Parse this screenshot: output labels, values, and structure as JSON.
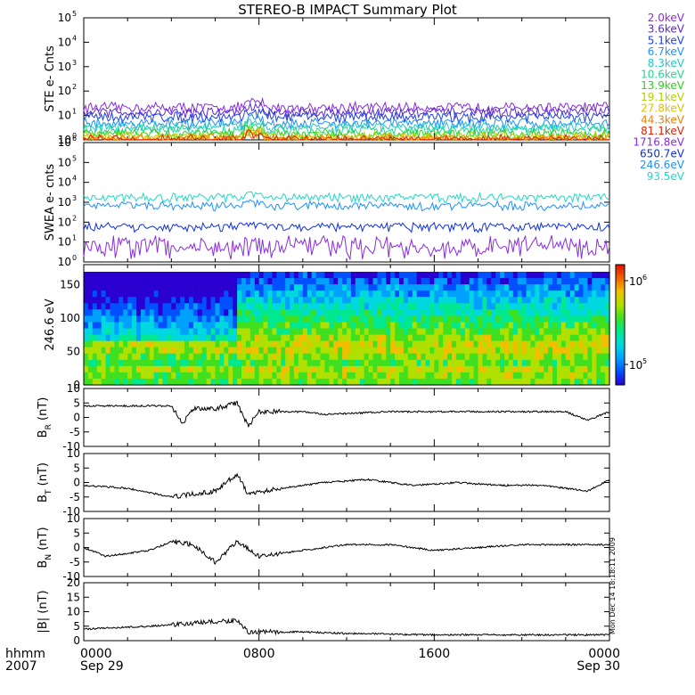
{
  "title": "STEREO-B IMPACT Summary Plot",
  "time_axis": {
    "row1_labels": [
      "0000",
      "0800",
      "1600",
      "0000"
    ],
    "row2_labels": [
      "Sep 29",
      "",
      "",
      "Sep 30"
    ],
    "left_label_1": "hhmm",
    "left_label_2": "2007",
    "range_hours": [
      0,
      24
    ]
  },
  "side_stamp": "Mon Dec 14 18:18:11 2009",
  "chart_data": [
    {
      "id": "ste",
      "type": "line",
      "ylabel": "STE e- Cnts",
      "yscale": "log",
      "ylim": [
        1,
        100000
      ],
      "y_ticks": [
        {
          "base": "10",
          "exp": "0",
          "v": 1
        },
        {
          "base": "10",
          "exp": "1",
          "v": 10
        },
        {
          "base": "10",
          "exp": "2",
          "v": 100
        },
        {
          "base": "10",
          "exp": "3",
          "v": 1000
        },
        {
          "base": "10",
          "exp": "4",
          "v": 10000
        },
        {
          "base": "10",
          "exp": "5",
          "v": 100000
        }
      ],
      "series": [
        {
          "name": "2.0keV",
          "color": "#8a2be2",
          "level": 22
        },
        {
          "name": "3.6keV",
          "color": "#5a2ad0",
          "level": 14
        },
        {
          "name": "5.1keV",
          "color": "#2040e0",
          "level": 9
        },
        {
          "name": "6.7keV",
          "color": "#1e90ff",
          "level": 5
        },
        {
          "name": "8.3keV",
          "color": "#20c8c8",
          "level": 3.5
        },
        {
          "name": "10.6keV",
          "color": "#20d890",
          "level": 2.5
        },
        {
          "name": "13.9keV",
          "color": "#30d020",
          "level": 1.8
        },
        {
          "name": "19.1keV",
          "color": "#b0d000",
          "level": 1.4
        },
        {
          "name": "27.8keV",
          "color": "#e0c000",
          "level": 1.2
        },
        {
          "name": "44.3keV",
          "color": "#f08000",
          "level": 1.1
        },
        {
          "name": "81.1keV",
          "color": "#e02000",
          "level": 1.05
        }
      ]
    },
    {
      "id": "swea",
      "type": "line",
      "ylabel": "SWEA e- cnts",
      "yscale": "log",
      "ylim": [
        1,
        1000000
      ],
      "y_ticks": [
        {
          "base": "10",
          "exp": "0",
          "v": 1
        },
        {
          "base": "10",
          "exp": "1",
          "v": 10
        },
        {
          "base": "10",
          "exp": "2",
          "v": 100
        },
        {
          "base": "10",
          "exp": "3",
          "v": 1000
        },
        {
          "base": "10",
          "exp": "4",
          "v": 10000
        },
        {
          "base": "10",
          "exp": "5",
          "v": 100000
        },
        {
          "base": "10",
          "exp": "6",
          "v": 1000000
        }
      ],
      "series": [
        {
          "name": "1716.8eV",
          "color": "#8a2be2",
          "level": 6
        },
        {
          "name": "650.7eV",
          "color": "#1030e0",
          "level": 60
        },
        {
          "name": "246.6eV",
          "color": "#1e90ff",
          "level": 700
        },
        {
          "name": "93.5eV",
          "color": "#20d8c8",
          "level": 1800
        }
      ]
    },
    {
      "id": "pad",
      "type": "heatmap",
      "ylabel": "246.6 eV",
      "ylim": [
        0,
        180
      ],
      "y_ticks": [
        "0",
        "50",
        "100",
        "150"
      ],
      "y_tick_values": [
        0,
        50,
        100,
        150
      ],
      "colorbar": {
        "scale": "log",
        "ticks": [
          {
            "base": "10",
            "exp": "5"
          },
          {
            "base": "10",
            "exp": "6"
          }
        ]
      }
    },
    {
      "id": "br",
      "type": "line",
      "ylabel_main": "B",
      "ylabel_sub": "R",
      "ylabel_unit": " (nT)",
      "ylim": [
        -10,
        10
      ],
      "y_ticks": [
        "10",
        "5",
        "0",
        "-5",
        "-10"
      ],
      "y_tick_values": [
        10,
        5,
        0,
        -5,
        -10
      ],
      "profile": [
        [
          0,
          4
        ],
        [
          4,
          4
        ],
        [
          4.5,
          -2
        ],
        [
          5,
          3
        ],
        [
          6,
          3
        ],
        [
          7,
          5
        ],
        [
          7.5,
          -3
        ],
        [
          8,
          2
        ],
        [
          10,
          2
        ],
        [
          11,
          1
        ],
        [
          14,
          2
        ],
        [
          20,
          2
        ],
        [
          22,
          2
        ],
        [
          23,
          -1
        ],
        [
          24,
          2
        ]
      ]
    },
    {
      "id": "bt",
      "type": "line",
      "ylabel_main": "B",
      "ylabel_sub": "T",
      "ylabel_unit": " (nT)",
      "ylim": [
        -10,
        10
      ],
      "y_ticks": [
        "10",
        "5",
        "0",
        "-5",
        "-10"
      ],
      "y_tick_values": [
        10,
        5,
        0,
        -5,
        -10
      ],
      "profile": [
        [
          0,
          -1
        ],
        [
          2,
          -2
        ],
        [
          4,
          -5
        ],
        [
          6,
          -3
        ],
        [
          7,
          3
        ],
        [
          7.5,
          -4
        ],
        [
          9,
          -2
        ],
        [
          11,
          0
        ],
        [
          13,
          1
        ],
        [
          15,
          -1
        ],
        [
          17,
          0
        ],
        [
          19,
          -1
        ],
        [
          21,
          -1
        ],
        [
          23,
          -3
        ],
        [
          24,
          1
        ]
      ]
    },
    {
      "id": "bn",
      "type": "line",
      "ylabel_main": "B",
      "ylabel_sub": "N",
      "ylabel_unit": " (nT)",
      "ylim": [
        -10,
        10
      ],
      "y_ticks": [
        "10",
        "5",
        "0",
        "-5",
        "-10"
      ],
      "y_tick_values": [
        10,
        5,
        0,
        -5,
        -10
      ],
      "profile": [
        [
          0,
          0
        ],
        [
          1,
          -3
        ],
        [
          3,
          -1
        ],
        [
          4,
          2
        ],
        [
          5,
          1
        ],
        [
          6,
          -5
        ],
        [
          7,
          2
        ],
        [
          8,
          -3
        ],
        [
          10,
          -1
        ],
        [
          12,
          1
        ],
        [
          14,
          1
        ],
        [
          16,
          -1
        ],
        [
          18,
          0
        ],
        [
          20,
          1
        ],
        [
          24,
          1
        ]
      ]
    },
    {
      "id": "bmag",
      "type": "line",
      "ylabel_main": "|B| (nT)",
      "ylim": [
        0,
        20
      ],
      "y_ticks": [
        "20",
        "15",
        "10",
        "5",
        "0"
      ],
      "y_tick_values": [
        20,
        15,
        10,
        5,
        0
      ],
      "profile": [
        [
          0,
          4
        ],
        [
          3,
          5
        ],
        [
          5,
          6
        ],
        [
          7,
          7
        ],
        [
          7.5,
          3
        ],
        [
          8,
          3
        ],
        [
          10,
          3
        ],
        [
          12,
          2.5
        ],
        [
          16,
          2
        ],
        [
          20,
          2
        ],
        [
          24,
          2
        ]
      ]
    }
  ],
  "icons": {
    "colorbar": "rainbow-colorbar"
  }
}
